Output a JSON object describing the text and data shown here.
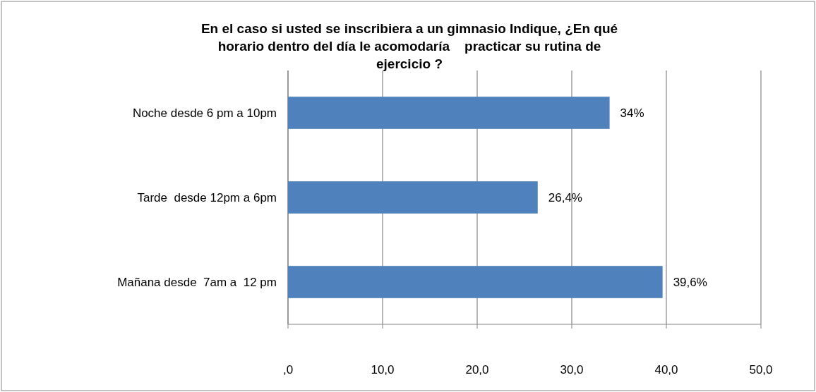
{
  "chart_data": {
    "type": "bar",
    "orientation": "horizontal",
    "title": "En el caso si usted se inscribiera a un gimnasio Indique, ¿En qué\nhorario dentro del día le acomodaría    practicar su rutina de\nejercicio ?",
    "categories": [
      "Noche desde 6 pm a 10pm",
      "Tarde  desde 12pm a 6pm",
      "Mañana desde  7am a  12 pm"
    ],
    "values": [
      34,
      26.4,
      39.6
    ],
    "value_labels": [
      "34%",
      "26,4%",
      "39,6%"
    ],
    "color": "#4f81bd",
    "xlim": [
      0,
      50
    ],
    "xticks": [
      {
        "value": 0,
        "label": ",0"
      },
      {
        "value": 10,
        "label": "10,0"
      },
      {
        "value": 20,
        "label": "20,0"
      },
      {
        "value": 30,
        "label": "30,0"
      },
      {
        "value": 40,
        "label": "40,0"
      },
      {
        "value": 50,
        "label": "50,0"
      }
    ],
    "grid": "x"
  }
}
